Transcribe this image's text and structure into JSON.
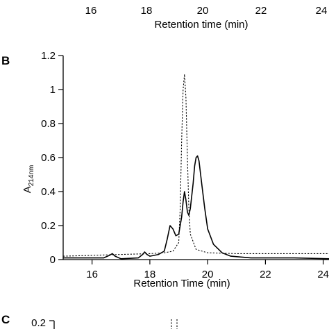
{
  "panel_top": {
    "x_ticks": [
      "16",
      "18",
      "20",
      "22",
      "24"
    ],
    "xlabel": "Retention time (min)"
  },
  "panel_b": {
    "letter": "B"
  },
  "panel_c": {
    "letter": "C",
    "y_tick": "0.2"
  },
  "chart_data": [
    {
      "type": "line",
      "title": "",
      "xlabel": "Retention Time (min)",
      "ylabel_main": "A",
      "ylabel_sub": "214nm",
      "xlim": [
        15,
        24.2
      ],
      "ylim": [
        0,
        1.2
      ],
      "x_ticks": [
        16,
        18,
        20,
        22,
        24
      ],
      "y_ticks": [
        0,
        0.2,
        0.4,
        0.6,
        0.8,
        1,
        1.2
      ],
      "x_tick_labels": [
        "16",
        "18",
        "20",
        "22",
        "24"
      ],
      "y_tick_labels": [
        "0",
        "0.2",
        "0.4",
        "0.6",
        "0.8",
        "1",
        "1.2"
      ],
      "grid": false,
      "series": [
        {
          "style": "solid",
          "x": [
            15.0,
            16.4,
            16.6,
            16.7,
            16.8,
            17.0,
            17.6,
            17.75,
            17.82,
            17.9,
            18.0,
            18.3,
            18.5,
            18.6,
            18.7,
            18.8,
            18.9,
            19.0,
            19.1,
            19.15,
            19.2,
            19.25,
            19.3,
            19.35,
            19.4,
            19.5,
            19.55,
            19.6,
            19.65,
            19.7,
            19.8,
            19.9,
            20.0,
            20.2,
            20.5,
            20.8,
            21.5,
            23.0,
            24.2
          ],
          "y": [
            0.01,
            0.01,
            0.025,
            0.035,
            0.02,
            0.005,
            0.01,
            0.03,
            0.045,
            0.03,
            0.02,
            0.03,
            0.05,
            0.12,
            0.2,
            0.18,
            0.14,
            0.15,
            0.25,
            0.34,
            0.4,
            0.35,
            0.28,
            0.26,
            0.3,
            0.45,
            0.55,
            0.6,
            0.61,
            0.58,
            0.44,
            0.3,
            0.18,
            0.09,
            0.04,
            0.02,
            0.01,
            0.01,
            0.005
          ]
        },
        {
          "style": "dashed",
          "x": [
            15.0,
            16.0,
            17.0,
            18.0,
            18.5,
            18.8,
            19.0,
            19.05,
            19.1,
            19.15,
            19.2,
            19.25,
            19.3,
            19.35,
            19.4,
            19.6,
            20.0,
            21.0,
            22.5,
            24.2
          ],
          "y": [
            0.02,
            0.025,
            0.03,
            0.035,
            0.04,
            0.05,
            0.1,
            0.3,
            0.7,
            1.0,
            1.09,
            0.95,
            0.6,
            0.3,
            0.15,
            0.06,
            0.04,
            0.035,
            0.035,
            0.035
          ]
        }
      ]
    }
  ]
}
